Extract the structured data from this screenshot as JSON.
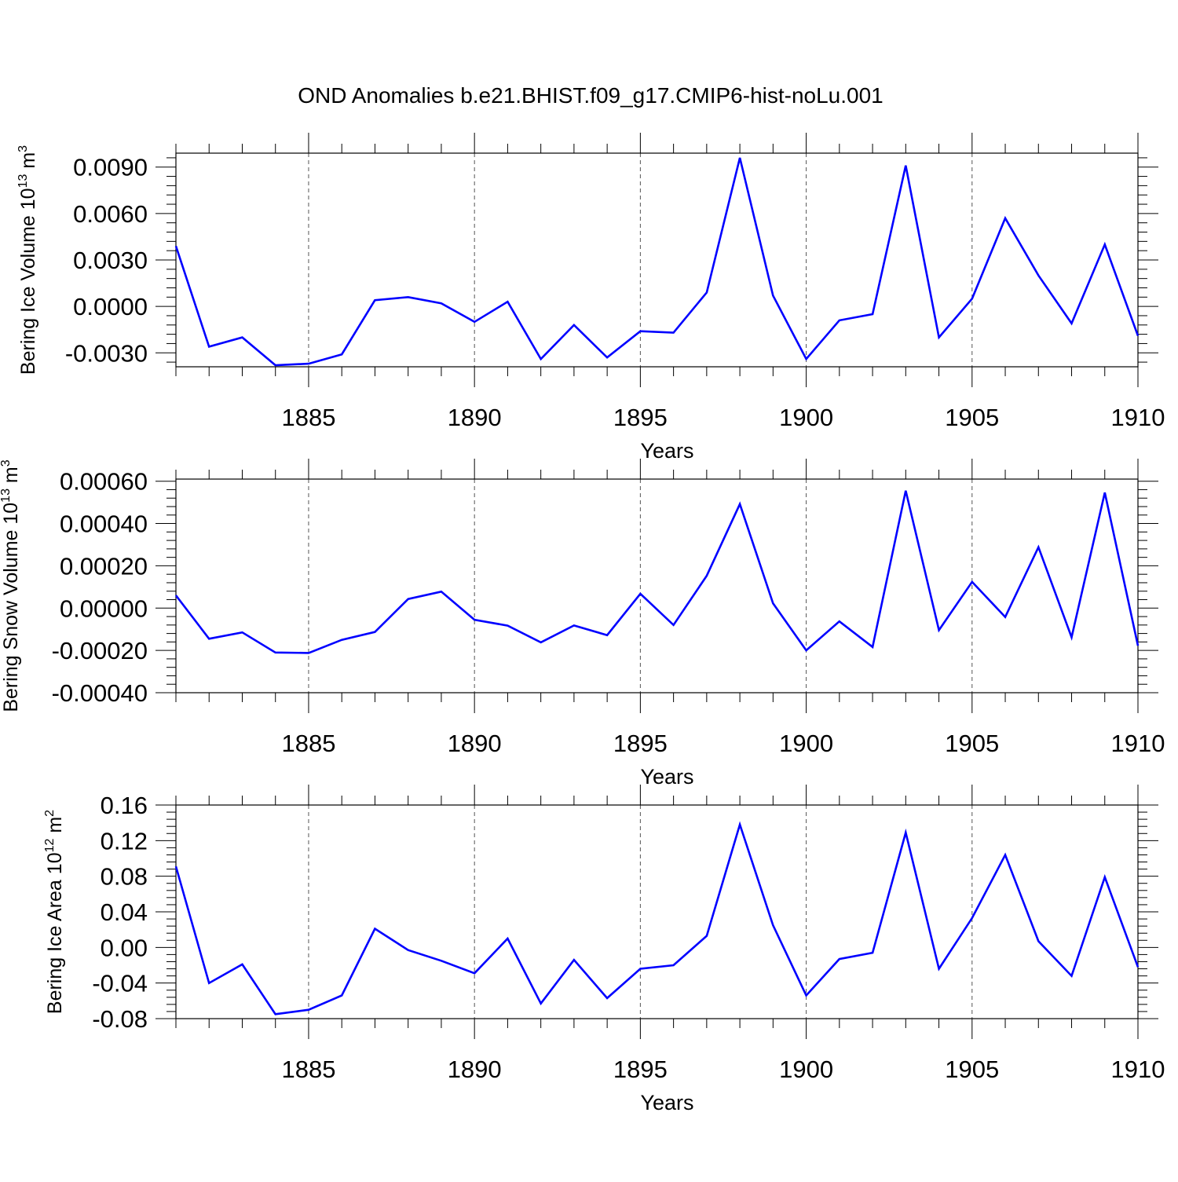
{
  "title": "OND Anomalies b.e21.BHIST.f09_g17.CMIP6-hist-noLu.001",
  "chart_data": [
    {
      "type": "line",
      "title": "OND Anomalies b.e21.BHIST.f09_g17.CMIP6-hist-noLu.001",
      "xlabel": "Years",
      "ylabel": "Bering Ice Volume",
      "ylabel_unit": "10",
      "ylabel_exp1": "13",
      "ylabel_unit2": "m",
      "ylabel_exp2": "3",
      "xlim": [
        1881,
        1910
      ],
      "ylim": [
        -0.0039,
        0.0099
      ],
      "x_ticks": [
        1885,
        1890,
        1895,
        1900,
        1905,
        1910
      ],
      "x_tick_labels": [
        "1885",
        "1890",
        "1895",
        "1900",
        "1905",
        "1910"
      ],
      "y_ticks": [
        -0.003,
        0.0,
        0.003,
        0.006,
        0.009
      ],
      "y_tick_labels": [
        "-0.0030",
        "0.0000",
        "0.0030",
        "0.0060",
        "0.0090"
      ],
      "grid": "vertical dashed at major x ticks",
      "color": "#0000ff",
      "x": [
        1881,
        1882,
        1883,
        1884,
        1885,
        1886,
        1887,
        1888,
        1889,
        1890,
        1891,
        1892,
        1893,
        1894,
        1895,
        1896,
        1897,
        1898,
        1899,
        1900,
        1901,
        1902,
        1903,
        1904,
        1905,
        1906,
        1907,
        1908,
        1909,
        1910
      ],
      "values": [
        0.0039,
        -0.0026,
        -0.002,
        -0.0038,
        -0.0037,
        -0.0031,
        0.0004,
        0.0006,
        0.0002,
        -0.001,
        0.0003,
        -0.0034,
        -0.0012,
        -0.0033,
        -0.0016,
        -0.0017,
        0.0009,
        0.0096,
        0.0007,
        -0.0034,
        -0.0009,
        -0.0005,
        0.0091,
        -0.002,
        0.0005,
        0.0057,
        0.002,
        -0.0011,
        0.004,
        -0.0019
      ]
    },
    {
      "type": "line",
      "xlabel": "Years",
      "ylabel": "Bering Snow Volume",
      "ylabel_unit": "10",
      "ylabel_exp1": "13",
      "ylabel_unit2": "m",
      "ylabel_exp2": "3",
      "xlim": [
        1881,
        1910
      ],
      "ylim": [
        -0.0004,
        0.00061
      ],
      "x_ticks": [
        1885,
        1890,
        1895,
        1900,
        1905,
        1910
      ],
      "x_tick_labels": [
        "1885",
        "1890",
        "1895",
        "1900",
        "1905",
        "1910"
      ],
      "y_ticks": [
        -0.0004,
        -0.0002,
        0.0,
        0.0002,
        0.0004,
        0.0006
      ],
      "y_tick_labels": [
        "-0.00040",
        "-0.00020",
        "0.00000",
        "0.00020",
        "0.00040",
        "0.00060"
      ],
      "grid": "vertical dashed at major x ticks",
      "color": "#0000ff",
      "x": [
        1881,
        1882,
        1883,
        1884,
        1885,
        1886,
        1887,
        1888,
        1889,
        1890,
        1891,
        1892,
        1893,
        1894,
        1895,
        1896,
        1897,
        1898,
        1899,
        1900,
        1901,
        1902,
        1903,
        1904,
        1905,
        1906,
        1907,
        1908,
        1909,
        1910
      ],
      "values": [
        6e-05,
        -0.000145,
        -0.000115,
        -0.00021,
        -0.000212,
        -0.00015,
        -0.000113,
        4.3e-05,
        7.8e-05,
        -5.5e-05,
        -8.3e-05,
        -0.000162,
        -8.2e-05,
        -0.000128,
        6.8e-05,
        -8e-05,
        0.000153,
        0.000492,
        2.3e-05,
        -0.0002,
        -6.3e-05,
        -0.000184,
        0.000555,
        -0.000104,
        0.000124,
        -4.2e-05,
        0.000288,
        -0.000138,
        0.000546,
        -0.000178
      ]
    },
    {
      "type": "line",
      "xlabel": "Years",
      "ylabel": "Bering Ice Area",
      "ylabel_unit": "10",
      "ylabel_exp1": "12",
      "ylabel_unit2": "m",
      "ylabel_exp2": "2",
      "xlim": [
        1881,
        1910
      ],
      "ylim": [
        -0.08,
        0.16
      ],
      "x_ticks": [
        1885,
        1890,
        1895,
        1900,
        1905,
        1910
      ],
      "x_tick_labels": [
        "1885",
        "1890",
        "1895",
        "1900",
        "1905",
        "1910"
      ],
      "y_ticks": [
        -0.08,
        -0.04,
        0.0,
        0.04,
        0.08,
        0.12,
        0.16
      ],
      "y_tick_labels": [
        "-0.08",
        "-0.04",
        "0.00",
        "0.04",
        "0.08",
        "0.12",
        "0.16"
      ],
      "grid": "vertical dashed at major x ticks",
      "color": "#0000ff",
      "x": [
        1881,
        1882,
        1883,
        1884,
        1885,
        1886,
        1887,
        1888,
        1889,
        1890,
        1891,
        1892,
        1893,
        1894,
        1895,
        1896,
        1897,
        1898,
        1899,
        1900,
        1901,
        1902,
        1903,
        1904,
        1905,
        1906,
        1907,
        1908,
        1909,
        1910
      ],
      "values": [
        0.091,
        -0.04,
        -0.019,
        -0.075,
        -0.07,
        -0.054,
        0.021,
        -0.003,
        -0.015,
        -0.029,
        0.01,
        -0.063,
        -0.014,
        -0.057,
        -0.024,
        -0.02,
        0.013,
        0.138,
        0.025,
        -0.054,
        -0.013,
        -0.006,
        0.129,
        -0.024,
        0.033,
        0.104,
        0.007,
        -0.032,
        0.079,
        -0.022
      ]
    }
  ]
}
